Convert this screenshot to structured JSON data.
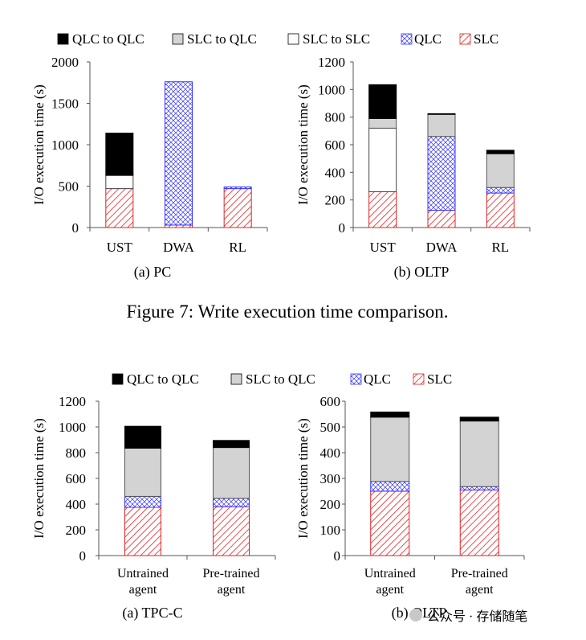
{
  "figure7": {
    "legend": [
      "QLC to QLC",
      "SLC to QLC",
      "SLC to SLC",
      "QLC",
      "SLC"
    ],
    "caption": "Figure 7: Write execution time comparison."
  },
  "figure8": {
    "legend": [
      "QLC to QLC",
      "SLC to QLC",
      "QLC",
      "SLC"
    ]
  },
  "watermark": "公众号 · 存储随笔",
  "colors": {
    "qlc_to_qlc": "#000000",
    "slc_to_qlc": "#d3d3d3",
    "slc_to_slc": "#ffffff",
    "qlc": "#3333ff",
    "slc": "#e02020"
  },
  "chart_data": [
    {
      "type": "bar",
      "stacked": true,
      "caption": "(a) PC",
      "ylabel": "I/O execution time (s)",
      "ylim": [
        0,
        2000
      ],
      "yticks": [
        0,
        500,
        1000,
        1500,
        2000
      ],
      "categories": [
        "UST",
        "DWA",
        "RL"
      ],
      "series": [
        {
          "name": "SLC",
          "values": [
            470,
            30,
            470
          ]
        },
        {
          "name": "QLC",
          "values": [
            0,
            1730,
            20
          ]
        },
        {
          "name": "SLC to SLC",
          "values": [
            160,
            0,
            0
          ]
        },
        {
          "name": "SLC to QLC",
          "values": [
            0,
            0,
            0
          ]
        },
        {
          "name": "QLC to QLC",
          "values": [
            510,
            0,
            0
          ]
        }
      ]
    },
    {
      "type": "bar",
      "stacked": true,
      "caption": "(b) OLTP",
      "ylabel": "I/O execution time (s)",
      "ylim": [
        0,
        1200
      ],
      "yticks": [
        0,
        200,
        400,
        600,
        800,
        1000,
        1200
      ],
      "categories": [
        "UST",
        "DWA",
        "RL"
      ],
      "series": [
        {
          "name": "SLC",
          "values": [
            260,
            125,
            250
          ]
        },
        {
          "name": "QLC",
          "values": [
            0,
            535,
            40
          ]
        },
        {
          "name": "SLC to SLC",
          "values": [
            460,
            0,
            0
          ]
        },
        {
          "name": "SLC to QLC",
          "values": [
            70,
            160,
            245
          ]
        },
        {
          "name": "QLC to QLC",
          "values": [
            245,
            5,
            25
          ]
        }
      ]
    },
    {
      "type": "bar",
      "stacked": true,
      "caption": "(a) TPC-C",
      "ylabel": "I/O execution time (s)",
      "ylim": [
        0,
        1200
      ],
      "yticks": [
        0,
        200,
        400,
        600,
        800,
        1000,
        1200
      ],
      "categories": [
        "Untrained agent",
        "Pre-trained agent"
      ],
      "series": [
        {
          "name": "SLC",
          "values": [
            375,
            380
          ]
        },
        {
          "name": "QLC",
          "values": [
            85,
            65
          ]
        },
        {
          "name": "SLC to QLC",
          "values": [
            375,
            395
          ]
        },
        {
          "name": "QLC to QLC",
          "values": [
            170,
            55
          ]
        }
      ]
    },
    {
      "type": "bar",
      "stacked": true,
      "caption": "(b) OLTP",
      "ylabel": "I/O execution time (s)",
      "ylim": [
        0,
        600
      ],
      "yticks": [
        0,
        100,
        200,
        300,
        400,
        500,
        600
      ],
      "categories": [
        "Untrained agent",
        "Pre-trained agent"
      ],
      "series": [
        {
          "name": "SLC",
          "values": [
            250,
            255
          ]
        },
        {
          "name": "QLC",
          "values": [
            38,
            13
          ]
        },
        {
          "name": "SLC to QLC",
          "values": [
            250,
            255
          ]
        },
        {
          "name": "QLC to QLC",
          "values": [
            20,
            15
          ]
        }
      ]
    }
  ]
}
